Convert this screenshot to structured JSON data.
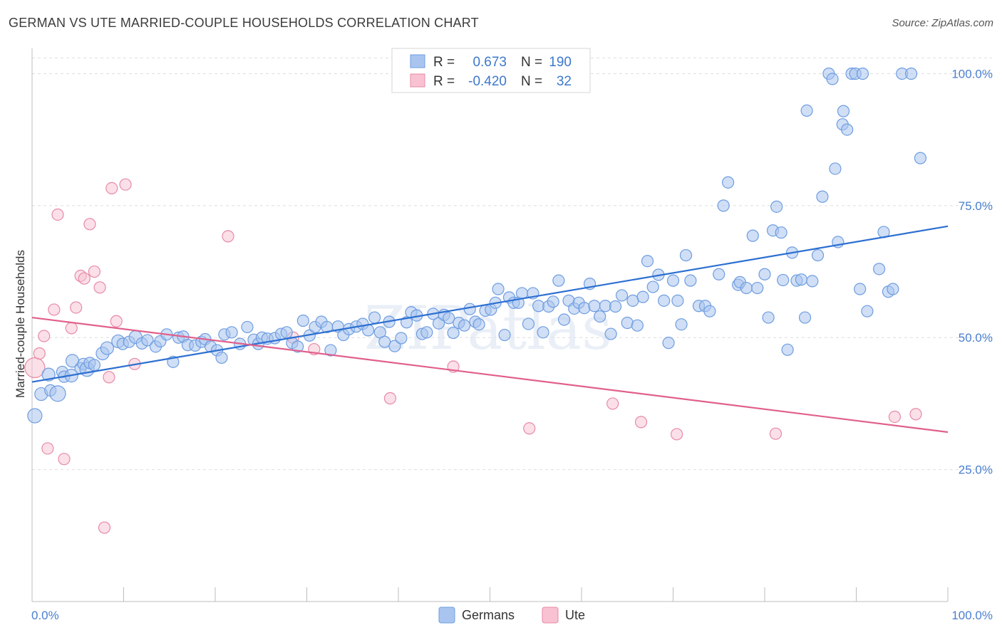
{
  "title": "GERMAN VS UTE MARRIED-COUPLE HOUSEHOLDS CORRELATION CHART",
  "source": "Source: ZipAtlas.com",
  "watermark": "ZIPatlas",
  "chart_data": {
    "type": "scatter",
    "ylabel": "Married-couple Households",
    "xlim": [
      0,
      100
    ],
    "ylim": [
      0,
      106
    ],
    "x_tick_labels": [
      "0.0%",
      "100.0%"
    ],
    "y_ticks": [
      25,
      50,
      75,
      100
    ],
    "y_tick_labels": [
      "25.0%",
      "50.0%",
      "75.0%",
      "100.0%"
    ],
    "legend": [
      {
        "r_label": "R =",
        "r_value": "0.673",
        "n_label": "N =",
        "n_value": "190"
      },
      {
        "r_label": "R =",
        "r_value": "-0.420",
        "n_label": "N =",
        "n_value": "32"
      }
    ],
    "series": [
      {
        "name": "Germans",
        "color": "#6e9de0",
        "fill": "#a9c5ef",
        "trend": [
          [
            0,
            41.6
          ],
          [
            100,
            71.1
          ]
        ],
        "points": [
          [
            0.3,
            35.2,
            10
          ],
          [
            1.0,
            39.3,
            9
          ],
          [
            1.8,
            43.0,
            9
          ],
          [
            2.0,
            40.0,
            8
          ],
          [
            2.8,
            39.4,
            11
          ],
          [
            3.3,
            43.5,
            8
          ],
          [
            3.5,
            42.6,
            8
          ],
          [
            4.3,
            42.8,
            9
          ],
          [
            4.4,
            45.6,
            9
          ],
          [
            5.3,
            44.2,
            8
          ],
          [
            5.6,
            45.0,
            8
          ],
          [
            6.0,
            44.0,
            10
          ],
          [
            6.3,
            45.2,
            8
          ],
          [
            6.8,
            44.8,
            8
          ],
          [
            7.7,
            47.0,
            9
          ],
          [
            8.2,
            48.0,
            9
          ],
          [
            9.4,
            49.3,
            9
          ],
          [
            9.9,
            48.8,
            8
          ],
          [
            10.6,
            49.2,
            8
          ],
          [
            11.3,
            50.1,
            9
          ],
          [
            12.0,
            48.9,
            8
          ],
          [
            12.6,
            49.5,
            8
          ],
          [
            13.5,
            48.3,
            8
          ],
          [
            14.0,
            49.3,
            8
          ],
          [
            14.7,
            50.6,
            8
          ],
          [
            15.4,
            45.4,
            8
          ],
          [
            16.0,
            50.0,
            8
          ],
          [
            16.5,
            50.2,
            8
          ],
          [
            17.0,
            48.6,
            8
          ],
          [
            17.8,
            48.5,
            8
          ],
          [
            18.5,
            49.2,
            8
          ],
          [
            18.9,
            49.7,
            8
          ],
          [
            19.5,
            48.3,
            8
          ],
          [
            20.2,
            47.6,
            8
          ],
          [
            20.7,
            46.2,
            8
          ],
          [
            21.0,
            50.6,
            8
          ],
          [
            21.8,
            51.0,
            8
          ],
          [
            22.7,
            48.8,
            8
          ],
          [
            23.5,
            52.0,
            8
          ],
          [
            24.2,
            49.6,
            8
          ],
          [
            24.7,
            48.8,
            8
          ],
          [
            25.1,
            50.0,
            8
          ],
          [
            25.7,
            49.8,
            8
          ],
          [
            26.5,
            49.9,
            8
          ],
          [
            27.2,
            50.7,
            8
          ],
          [
            27.8,
            51.0,
            8
          ],
          [
            28.4,
            49.0,
            8
          ],
          [
            29.0,
            48.3,
            8
          ],
          [
            29.6,
            53.2,
            8
          ],
          [
            30.3,
            50.4,
            8
          ],
          [
            30.9,
            52.0,
            8
          ],
          [
            31.6,
            53.0,
            8
          ],
          [
            32.2,
            52.0,
            8
          ],
          [
            32.6,
            47.6,
            8
          ],
          [
            33.4,
            52.1,
            8
          ],
          [
            34.0,
            50.5,
            8
          ],
          [
            34.6,
            51.6,
            8
          ],
          [
            35.4,
            52.1,
            8
          ],
          [
            36.1,
            52.6,
            8
          ],
          [
            36.7,
            51.4,
            8
          ],
          [
            37.4,
            53.8,
            8
          ],
          [
            38.0,
            51.0,
            8
          ],
          [
            38.5,
            49.2,
            8
          ],
          [
            39.0,
            53.0,
            8
          ],
          [
            39.6,
            48.4,
            8
          ],
          [
            40.3,
            49.9,
            8
          ],
          [
            40.9,
            52.9,
            8
          ],
          [
            41.4,
            54.8,
            8
          ],
          [
            42.0,
            54.2,
            8
          ],
          [
            42.6,
            50.7,
            8
          ],
          [
            43.1,
            51.0,
            8
          ],
          [
            43.8,
            54.5,
            8
          ],
          [
            44.4,
            52.7,
            8
          ],
          [
            45.0,
            54.3,
            8
          ],
          [
            45.5,
            53.7,
            8
          ],
          [
            46.0,
            50.9,
            8
          ],
          [
            46.6,
            52.8,
            8
          ],
          [
            47.2,
            52.3,
            8
          ],
          [
            47.8,
            55.4,
            8
          ],
          [
            48.4,
            53.0,
            8
          ],
          [
            48.8,
            52.5,
            8
          ],
          [
            49.5,
            55.1,
            8
          ],
          [
            50.1,
            55.3,
            8
          ],
          [
            50.6,
            56.6,
            8
          ],
          [
            50.9,
            59.2,
            8
          ],
          [
            51.6,
            50.5,
            8
          ],
          [
            52.1,
            57.6,
            8
          ],
          [
            52.6,
            56.6,
            8
          ],
          [
            53.1,
            56.6,
            8
          ],
          [
            53.5,
            58.4,
            8
          ],
          [
            54.2,
            52.6,
            8
          ],
          [
            54.7,
            58.4,
            8
          ],
          [
            55.3,
            56.0,
            8
          ],
          [
            55.8,
            51.0,
            8
          ],
          [
            56.4,
            55.9,
            8
          ],
          [
            56.9,
            56.8,
            8
          ],
          [
            57.5,
            60.8,
            8
          ],
          [
            58.1,
            53.4,
            8
          ],
          [
            58.6,
            57.0,
            8
          ],
          [
            59.2,
            55.5,
            8
          ],
          [
            59.7,
            56.6,
            8
          ],
          [
            60.3,
            55.6,
            8
          ],
          [
            60.9,
            60.2,
            8
          ],
          [
            61.4,
            56.0,
            8
          ],
          [
            62.0,
            54.0,
            8
          ],
          [
            62.6,
            56.0,
            8
          ],
          [
            63.2,
            50.7,
            8
          ],
          [
            63.7,
            55.9,
            8
          ],
          [
            64.4,
            58.0,
            8
          ],
          [
            65.0,
            52.8,
            8
          ],
          [
            65.6,
            57.0,
            8
          ],
          [
            66.1,
            52.3,
            8
          ],
          [
            66.7,
            57.7,
            8
          ],
          [
            67.2,
            64.5,
            8
          ],
          [
            67.8,
            59.6,
            8
          ],
          [
            68.4,
            61.9,
            8
          ],
          [
            69.0,
            57.0,
            8
          ],
          [
            69.5,
            49.0,
            8
          ],
          [
            70.0,
            60.8,
            8
          ],
          [
            70.5,
            57.0,
            8
          ],
          [
            70.9,
            52.5,
            8
          ],
          [
            71.4,
            65.6,
            8
          ],
          [
            71.9,
            60.8,
            8
          ],
          [
            72.8,
            56.0,
            8
          ],
          [
            73.5,
            56.0,
            8
          ],
          [
            74.0,
            55.0,
            8
          ],
          [
            75.0,
            62.0,
            8
          ],
          [
            75.5,
            75.0,
            8
          ],
          [
            76.0,
            79.4,
            8
          ],
          [
            77.1,
            60.0,
            8
          ],
          [
            77.3,
            60.5,
            8
          ],
          [
            78.0,
            59.4,
            8
          ],
          [
            78.7,
            69.3,
            8
          ],
          [
            79.2,
            59.4,
            8
          ],
          [
            80.0,
            62.0,
            8
          ],
          [
            80.4,
            53.8,
            8
          ],
          [
            80.9,
            70.3,
            8
          ],
          [
            81.3,
            74.8,
            8
          ],
          [
            81.8,
            69.9,
            8
          ],
          [
            82.0,
            60.9,
            8
          ],
          [
            82.5,
            47.7,
            8
          ],
          [
            83.0,
            66.1,
            8
          ],
          [
            83.5,
            60.8,
            8
          ],
          [
            84.0,
            61.0,
            8
          ],
          [
            84.4,
            53.8,
            8
          ],
          [
            84.6,
            93.0,
            8
          ],
          [
            85.2,
            60.7,
            8
          ],
          [
            85.8,
            65.6,
            8
          ],
          [
            86.3,
            76.7,
            8
          ],
          [
            87.0,
            100.0,
            8
          ],
          [
            87.4,
            99.0,
            8
          ],
          [
            87.7,
            82.0,
            8
          ],
          [
            88.0,
            68.1,
            8
          ],
          [
            88.5,
            90.4,
            8
          ],
          [
            88.6,
            92.9,
            8
          ],
          [
            89.0,
            89.4,
            8
          ],
          [
            89.5,
            100.0,
            8
          ],
          [
            89.9,
            100.0,
            8
          ],
          [
            90.4,
            59.2,
            8
          ],
          [
            90.7,
            100.0,
            8
          ],
          [
            91.2,
            55.0,
            8
          ],
          [
            92.5,
            63.0,
            8
          ],
          [
            93.0,
            70.0,
            8
          ],
          [
            93.5,
            58.7,
            8
          ],
          [
            94.0,
            59.2,
            8
          ],
          [
            95.0,
            100.0,
            8
          ],
          [
            96.0,
            100.0,
            8
          ],
          [
            97.0,
            84.0,
            8
          ]
        ]
      },
      {
        "name": "Ute",
        "color": "#e78aa6",
        "fill": "#f8c2d2",
        "trend": [
          [
            0,
            53.8
          ],
          [
            100,
            32.1
          ]
        ],
        "points": [
          [
            0.3,
            44.3,
            14
          ],
          [
            0.8,
            47.0,
            8
          ],
          [
            1.3,
            50.3,
            8
          ],
          [
            1.7,
            29.0,
            8
          ],
          [
            2.4,
            55.3,
            8
          ],
          [
            2.8,
            73.3,
            8
          ],
          [
            3.5,
            27.0,
            8
          ],
          [
            4.3,
            51.8,
            8
          ],
          [
            4.8,
            55.7,
            8
          ],
          [
            5.3,
            61.7,
            8
          ],
          [
            5.7,
            61.2,
            8
          ],
          [
            6.3,
            71.5,
            8
          ],
          [
            6.8,
            62.5,
            8
          ],
          [
            7.4,
            59.5,
            8
          ],
          [
            7.9,
            14.0,
            8
          ],
          [
            8.4,
            42.5,
            8
          ],
          [
            8.7,
            78.3,
            8
          ],
          [
            9.2,
            53.1,
            8
          ],
          [
            10.2,
            79.0,
            8
          ],
          [
            11.2,
            45.0,
            8
          ],
          [
            21.4,
            69.2,
            8
          ],
          [
            28.5,
            50.0,
            8
          ],
          [
            30.8,
            47.8,
            8
          ],
          [
            39.1,
            38.5,
            8
          ],
          [
            46.0,
            44.5,
            8
          ],
          [
            54.3,
            32.8,
            8
          ],
          [
            63.4,
            37.5,
            8
          ],
          [
            66.5,
            34.0,
            8
          ],
          [
            70.4,
            31.7,
            8
          ],
          [
            81.2,
            31.8,
            8
          ],
          [
            94.2,
            35.0,
            8
          ],
          [
            96.5,
            35.5,
            8
          ]
        ]
      }
    ]
  }
}
